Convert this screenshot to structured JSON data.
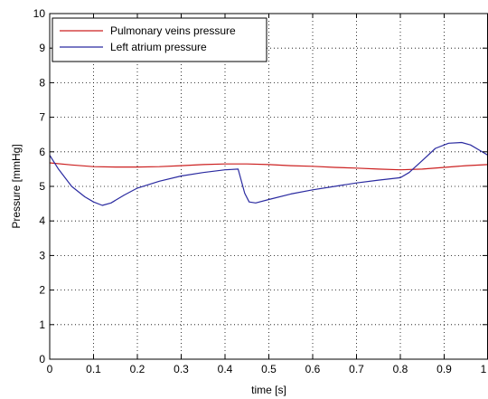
{
  "chart_data": {
    "type": "line",
    "title": "",
    "xlabel": "time [s]",
    "ylabel": "Pressure [mmHg]",
    "xlim": [
      0,
      1
    ],
    "ylim": [
      0,
      10
    ],
    "xticks": [
      0,
      0.1,
      0.2,
      0.3,
      0.4,
      0.5,
      0.6,
      0.7,
      0.8,
      0.9,
      1
    ],
    "xtick_labels": [
      "0",
      "0.1",
      "0.2",
      "0.3",
      "0.4",
      "0.5",
      "0.6",
      "0.7",
      "0.8",
      "0.9",
      "1"
    ],
    "yticks": [
      0,
      1,
      2,
      3,
      4,
      5,
      6,
      7,
      8,
      9,
      10
    ],
    "ytick_labels": [
      "0",
      "1",
      "2",
      "3",
      "4",
      "5",
      "6",
      "7",
      "8",
      "9",
      "10"
    ],
    "grid": true,
    "legend_position": "top-left",
    "series": [
      {
        "name": "Pulmonary veins pressure",
        "color": "#cc2020",
        "x": [
          0,
          0.05,
          0.1,
          0.15,
          0.2,
          0.25,
          0.3,
          0.35,
          0.4,
          0.45,
          0.5,
          0.55,
          0.6,
          0.65,
          0.7,
          0.75,
          0.8,
          0.85,
          0.9,
          0.95,
          1.0
        ],
        "y": [
          5.68,
          5.62,
          5.57,
          5.56,
          5.56,
          5.57,
          5.6,
          5.63,
          5.65,
          5.65,
          5.63,
          5.6,
          5.58,
          5.55,
          5.53,
          5.5,
          5.48,
          5.5,
          5.55,
          5.6,
          5.63
        ]
      },
      {
        "name": "Left atrium pressure",
        "color": "#2a2aa0",
        "x": [
          0,
          0.02,
          0.05,
          0.08,
          0.1,
          0.12,
          0.14,
          0.17,
          0.2,
          0.25,
          0.3,
          0.35,
          0.4,
          0.43,
          0.445,
          0.455,
          0.47,
          0.5,
          0.55,
          0.6,
          0.65,
          0.7,
          0.75,
          0.8,
          0.82,
          0.85,
          0.88,
          0.91,
          0.94,
          0.96,
          0.98,
          1.0
        ],
        "y": [
          5.9,
          5.5,
          5.0,
          4.7,
          4.55,
          4.45,
          4.52,
          4.75,
          4.95,
          5.15,
          5.3,
          5.4,
          5.48,
          5.5,
          4.8,
          4.55,
          4.52,
          4.62,
          4.78,
          4.9,
          5.0,
          5.1,
          5.18,
          5.25,
          5.4,
          5.75,
          6.1,
          6.25,
          6.27,
          6.2,
          6.05,
          5.9
        ]
      }
    ]
  }
}
